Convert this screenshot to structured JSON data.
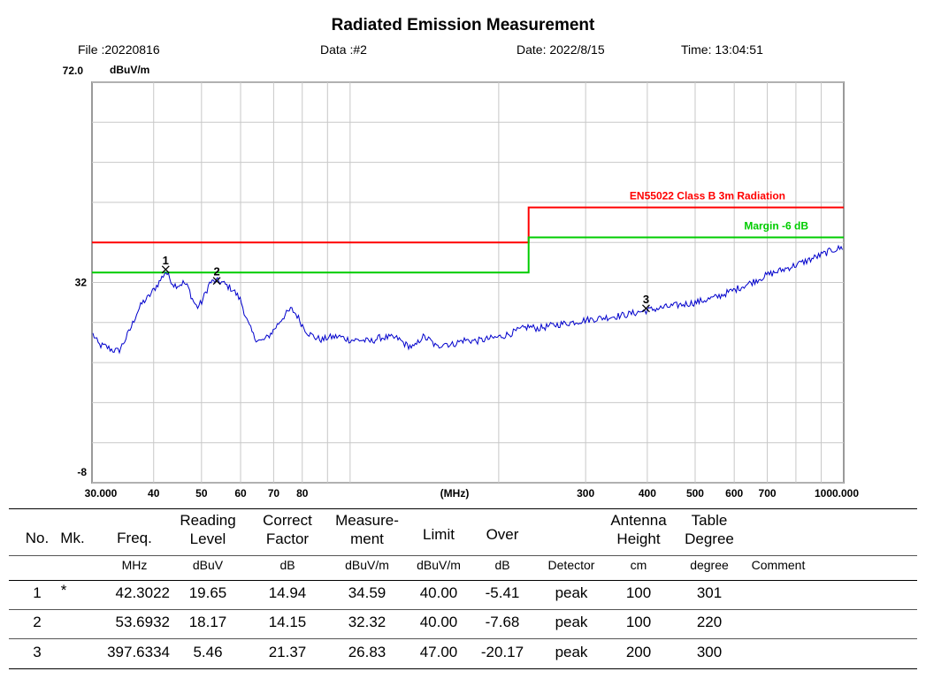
{
  "header": {
    "title": "Radiated Emission Measurement",
    "file": "File :20220816",
    "data": "Data :#2",
    "date": "Date: 2022/8/15",
    "time": "Time: 13:04:51"
  },
  "chart_data": {
    "type": "line",
    "ylabel": "dBuV/m",
    "xlabel": "(MHz)",
    "x_scale": "log",
    "xlim": [
      30,
      1000
    ],
    "ylim": [
      -8,
      72
    ],
    "y_tick_labels": [
      {
        "value": 72,
        "label": "72.0"
      },
      {
        "value": 32,
        "label": "32"
      },
      {
        "value": -8,
        "label": "-8"
      }
    ],
    "x_tick_labels": [
      {
        "value": 30,
        "label": "30.000"
      },
      {
        "value": 40,
        "label": "40"
      },
      {
        "value": 50,
        "label": "50"
      },
      {
        "value": 60,
        "label": "60"
      },
      {
        "value": 70,
        "label": "70"
      },
      {
        "value": 80,
        "label": "80"
      },
      {
        "value": 300,
        "label": "300"
      },
      {
        "value": 400,
        "label": "400"
      },
      {
        "value": 500,
        "label": "500"
      },
      {
        "value": 600,
        "label": "600"
      },
      {
        "value": 700,
        "label": "700"
      },
      {
        "value": 1000,
        "label": "1000.000"
      }
    ],
    "x_grid": [
      40,
      50,
      60,
      70,
      80,
      90,
      100,
      200,
      300,
      400,
      500,
      600,
      700,
      800,
      900
    ],
    "y_grid": [
      72,
      64,
      56,
      48,
      40,
      32,
      24,
      16,
      8,
      0,
      -8
    ],
    "limit_lines": [
      {
        "name": "EN55022 Class B 3m Radiation",
        "color": "#ff0000",
        "points": [
          [
            30,
            40
          ],
          [
            230,
            40
          ],
          [
            230,
            47
          ],
          [
            1000,
            47
          ]
        ]
      },
      {
        "name": "Margin -6 dB",
        "color": "#00cc00",
        "points": [
          [
            30,
            34
          ],
          [
            230,
            34
          ],
          [
            230,
            41
          ],
          [
            1000,
            41
          ]
        ]
      }
    ],
    "series": [
      {
        "color": "#0000cc",
        "x": [
          30,
          31,
          32,
          33,
          34,
          35,
          36,
          37,
          38,
          39,
          40,
          41,
          42.3,
          43,
          44,
          45,
          46,
          47,
          48,
          49,
          50,
          51,
          52,
          53.7,
          55,
          56,
          58,
          60,
          62,
          64,
          66,
          68,
          70,
          73,
          76,
          78,
          80,
          82,
          85,
          88,
          90,
          95,
          100,
          105,
          110,
          115,
          120,
          125,
          130,
          135,
          140,
          145,
          150,
          155,
          160,
          170,
          180,
          190,
          200,
          210,
          220,
          230,
          240,
          260,
          280,
          300,
          330,
          360,
          397.6,
          420,
          450,
          500,
          550,
          600,
          650,
          700,
          750,
          800,
          850,
          900,
          950,
          1000
        ],
        "y": [
          22,
          19.5,
          19.2,
          18.5,
          18.3,
          20.5,
          23,
          26,
          28,
          29,
          30.5,
          32,
          34.2,
          33,
          31.5,
          31.5,
          32,
          31,
          28.5,
          27,
          28,
          30,
          32,
          32.3,
          32,
          31.5,
          30.5,
          28.5,
          24,
          21,
          20.2,
          21,
          22.5,
          25,
          26.7,
          25.5,
          23.5,
          22,
          21,
          20.5,
          21,
          21.2,
          20.5,
          20.5,
          20.2,
          21,
          21,
          20.8,
          19.5,
          19,
          21.2,
          20.5,
          19,
          20,
          19.5,
          20.5,
          20.3,
          20.7,
          21.1,
          21.7,
          22.5,
          23.2,
          22.8,
          23.5,
          24,
          24.5,
          25,
          25.5,
          26.4,
          26.8,
          27.3,
          28,
          29,
          30.5,
          32,
          33.5,
          34.5,
          35.5,
          36.5,
          37.5,
          38.5,
          39
        ]
      }
    ],
    "markers": [
      {
        "label": "1",
        "x": 42.3022,
        "y": 34.59
      },
      {
        "label": "2",
        "x": 53.6932,
        "y": 32.32
      },
      {
        "label": "3",
        "x": 397.6334,
        "y": 26.83
      }
    ]
  },
  "table": {
    "headers": {
      "no": "No.",
      "mk": "Mk.",
      "freq": "Freq.",
      "reading": [
        "Reading",
        "Level"
      ],
      "correct": [
        "Correct",
        "Factor"
      ],
      "measure": [
        "Measure-",
        "ment"
      ],
      "limit": "Limit",
      "over": "Over",
      "antenna": [
        "Antenna",
        "Height"
      ],
      "table_deg": [
        "Table",
        "Degree"
      ]
    },
    "units": {
      "freq": "MHz",
      "reading": "dBuV",
      "correct": "dB",
      "measure": "dBuV/m",
      "limit": "dBuV/m",
      "over": "dB",
      "detector": "Detector",
      "antenna": "cm",
      "table_deg": "degree",
      "comment": "Comment"
    },
    "rows": [
      {
        "no": "1",
        "mk": "*",
        "freq": "42.3022",
        "reading": "19.65",
        "correct": "14.94",
        "measure": "34.59",
        "limit": "40.00",
        "over": "-5.41",
        "detector": "peak",
        "antenna": "100",
        "table_deg": "301"
      },
      {
        "no": "2",
        "mk": "",
        "freq": "53.6932",
        "reading": "18.17",
        "correct": "14.15",
        "measure": "32.32",
        "limit": "40.00",
        "over": "-7.68",
        "detector": "peak",
        "antenna": "100",
        "table_deg": "220"
      },
      {
        "no": "3",
        "mk": "",
        "freq": "397.6334",
        "reading": "5.46",
        "correct": "21.37",
        "measure": "26.83",
        "limit": "47.00",
        "over": "-20.17",
        "detector": "peak",
        "antenna": "200",
        "table_deg": "300"
      }
    ]
  }
}
